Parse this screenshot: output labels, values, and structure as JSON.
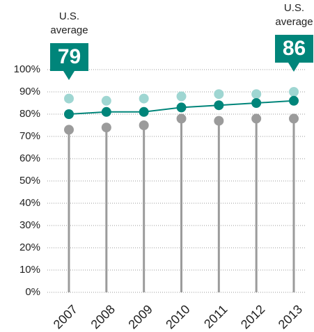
{
  "chart_data": {
    "type": "line",
    "categories": [
      "2007",
      "2008",
      "2009",
      "2010",
      "2011",
      "2012",
      "2013"
    ],
    "series": [
      {
        "color": "#9fd6d2",
        "values": [
          87,
          86,
          87,
          88,
          89,
          89,
          90
        ]
      },
      {
        "color": "#9b9b9b",
        "values": [
          73,
          74,
          75,
          78,
          77,
          78,
          78
        ]
      },
      {
        "color": "#00857a",
        "values": [
          80,
          81,
          81,
          83,
          84,
          85,
          86
        ]
      }
    ],
    "ylim": [
      0,
      100
    ],
    "yticks": [
      {
        "value": 0,
        "label": "0%"
      },
      {
        "value": 10,
        "label": "10%"
      },
      {
        "value": 20,
        "label": "20%"
      },
      {
        "value": 30,
        "label": "30%"
      },
      {
        "value": 40,
        "label": "40%"
      },
      {
        "value": 50,
        "label": "50%"
      },
      {
        "value": 60,
        "label": "60%"
      },
      {
        "value": 70,
        "label": "70%"
      },
      {
        "value": 80,
        "label": "80%"
      },
      {
        "value": 90,
        "label": "90%"
      },
      {
        "value": 100,
        "label": "100%"
      }
    ],
    "grid": true,
    "annotations": [
      {
        "lines": [
          "U.S.",
          "average"
        ],
        "value": 79
      },
      {
        "lines": [
          "U.S.",
          "average"
        ],
        "value": 86
      }
    ]
  }
}
